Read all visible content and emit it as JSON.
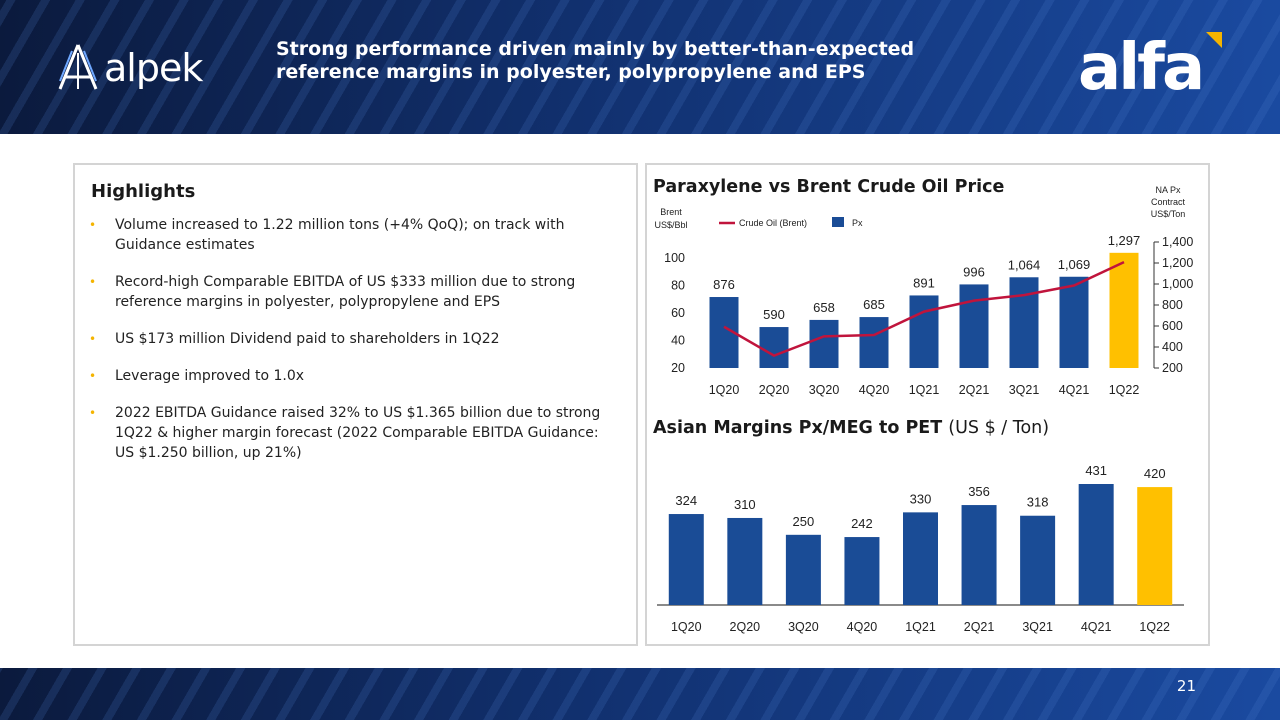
{
  "header": {
    "title_line1": "Strong performance driven mainly by better-than-expected",
    "title_line2": "reference margins in polyester, polypropylene and EPS",
    "left_logo": "alpek",
    "right_logo": "alfa",
    "accent_color": "#f4b400"
  },
  "highlights": {
    "title": "Highlights",
    "items": [
      "Volume increased to 1.22 million tons (+4% QoQ); on track with Guidance estimates",
      "Record-high Comparable EBITDA of US $333 million due to strong reference margins in polyester, polypropylene and EPS",
      "US $173 million Dividend paid to shareholders in 1Q22",
      "Leverage improved to 1.0x",
      "2022 EBITDA Guidance raised 32% to US $1.365 billion due to strong 1Q22 & higher margin forecast (2022 Comparable EBITDA Guidance: US $1.250 billion, up 21%)"
    ]
  },
  "chart_data": [
    {
      "type": "bar",
      "title": "Paraxylene vs Brent Crude Oil Price",
      "categories": [
        "1Q20",
        "2Q20",
        "3Q20",
        "4Q20",
        "1Q21",
        "2Q21",
        "3Q21",
        "4Q21",
        "1Q22"
      ],
      "left_axis_label": "Brent US$/Bbl",
      "right_axis_label": "NA Px Contract US$/Ton",
      "left_ylim": [
        20,
        100
      ],
      "left_ticks": [
        "20",
        "40",
        "60",
        "80",
        "100"
      ],
      "right_ylim": [
        200,
        1400
      ],
      "right_ticks": [
        "200",
        "400",
        "600",
        "800",
        "1,000",
        "1,200",
        "1,400"
      ],
      "legend": [
        "Crude Oil (Brent)",
        "Px"
      ],
      "series": [
        {
          "name": "Px",
          "kind": "bar",
          "axis": "right",
          "values": [
            876,
            590,
            658,
            685,
            891,
            996,
            1064,
            1069,
            1297
          ],
          "labels": [
            "876",
            "590",
            "658",
            "685",
            "891",
            "996",
            "1,064",
            "1,069",
            "1,297"
          ]
        },
        {
          "name": "Crude Oil (Brent)",
          "kind": "line",
          "axis": "left",
          "values": [
            50,
            29,
            43,
            44,
            61,
            69,
            73,
            80,
            97
          ]
        }
      ],
      "colors": {
        "bar": "#1a4c96",
        "highlight": "#ffc000",
        "line": "#c0143c"
      }
    },
    {
      "type": "bar",
      "title": "Asian Margins Px/MEG to PET",
      "title_unit": "(US $ / Ton)",
      "categories": [
        "1Q20",
        "2Q20",
        "3Q20",
        "4Q20",
        "1Q21",
        "2Q21",
        "3Q21",
        "4Q21",
        "1Q22"
      ],
      "values": [
        324,
        310,
        250,
        242,
        330,
        356,
        318,
        431,
        420
      ],
      "labels": [
        "324",
        "310",
        "250",
        "242",
        "330",
        "356",
        "318",
        "431",
        "420"
      ],
      "colors": {
        "bar": "#1a4c96",
        "highlight": "#ffc000"
      }
    }
  ],
  "footer": {
    "page_number": "21"
  }
}
